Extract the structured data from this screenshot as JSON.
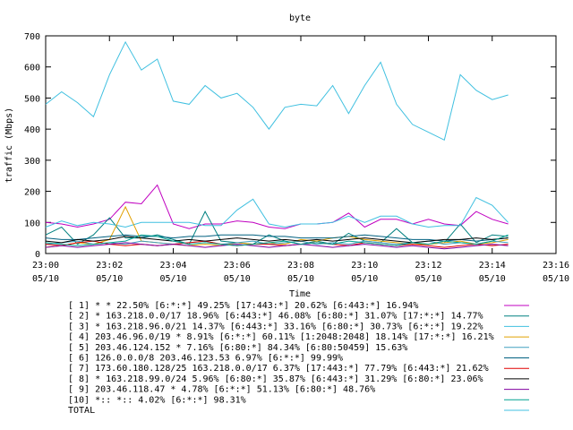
{
  "chart_data": {
    "type": "line",
    "title": "byte",
    "xlabel": "Time",
    "ylabel": "traffic (Mbps)",
    "xlim": [
      "23:00",
      "23:16"
    ],
    "ylim": [
      0,
      700
    ],
    "yticks": [
      0,
      100,
      200,
      300,
      400,
      500,
      600,
      700
    ],
    "xticks": [
      {
        "time": "23:00",
        "date": "05/10"
      },
      {
        "time": "23:02",
        "date": "05/10"
      },
      {
        "time": "23:04",
        "date": "05/10"
      },
      {
        "time": "23:06",
        "date": "05/10"
      },
      {
        "time": "23:08",
        "date": "05/10"
      },
      {
        "time": "23:10",
        "date": "05/10"
      },
      {
        "time": "23:12",
        "date": "05/10"
      },
      {
        "time": "23:14",
        "date": "05/10"
      },
      {
        "time": "23:16",
        "date": "05/10"
      }
    ],
    "grid": false,
    "legend_position": "bottom",
    "x": [
      "23:00:00",
      "23:00:30",
      "23:01:00",
      "23:01:30",
      "23:02:00",
      "23:02:30",
      "23:03:00",
      "23:03:30",
      "23:04:00",
      "23:04:30",
      "23:05:00",
      "23:05:30",
      "23:06:00",
      "23:06:30",
      "23:07:00",
      "23:07:30",
      "23:08:00",
      "23:08:30",
      "23:09:00",
      "23:09:30",
      "23:10:00",
      "23:10:30",
      "23:11:00",
      "23:11:30",
      "23:12:00",
      "23:12:30",
      "23:13:00",
      "23:13:30",
      "23:14:00",
      "23:14:30"
    ],
    "series": [
      {
        "name": "[ 1] * * 22.50%  [6:*:*] 49.25% [17:443:*] 20.62% [6:443:*] 16.94%",
        "color": "#c000c0",
        "values": [
          100,
          95,
          85,
          95,
          110,
          165,
          160,
          220,
          95,
          80,
          95,
          95,
          105,
          100,
          85,
          80,
          95,
          95,
          100,
          130,
          85,
          110,
          110,
          95,
          110,
          95,
          90,
          135,
          110,
          95
        ]
      },
      {
        "name": "[ 2] * 163.218.0.0/17 18.96%  [6:443:*] 46.08% [6:80:*] 31.07% [17:*:*] 14.77%",
        "color": "#008080",
        "values": [
          60,
          85,
          30,
          60,
          115,
          50,
          50,
          60,
          45,
          30,
          135,
          40,
          35,
          30,
          60,
          40,
          30,
          40,
          30,
          65,
          40,
          35,
          80,
          35,
          30,
          35,
          95,
          35,
          60,
          55
        ]
      },
      {
        "name": "[ 3] * 163.218.96.0/21 14.37%  [6:443:*] 33.16% [6:80:*] 30.73% [6:*:*] 19.22%",
        "color": "#40c0e0",
        "values": [
          85,
          105,
          90,
          100,
          95,
          85,
          100,
          100,
          100,
          100,
          90,
          90,
          140,
          175,
          95,
          85,
          95,
          95,
          100,
          120,
          100,
          120,
          120,
          95,
          85,
          90,
          90,
          180,
          155,
          100
        ]
      },
      {
        "name": "[ 4] 203.46.96.0/19 * 8.91%  [6:*:*] 60.11% [1:2048:2048] 18.14% [17:*:*] 16.21%",
        "color": "#e0a000",
        "values": [
          20,
          25,
          35,
          30,
          45,
          150,
          40,
          35,
          30,
          25,
          30,
          25,
          35,
          30,
          35,
          30,
          45,
          40,
          50,
          55,
          45,
          40,
          35,
          30,
          30,
          35,
          40,
          30,
          35,
          45
        ]
      },
      {
        "name": "[ 5] 203.46.124.152 * 7.16%  [6:80:*] 84.34% [6:80:50459] 15.63%",
        "color": "#40a0c0",
        "values": [
          30,
          35,
          40,
          30,
          35,
          30,
          40,
          35,
          30,
          35,
          40,
          30,
          35,
          40,
          30,
          35,
          40,
          30,
          35,
          30,
          40,
          35,
          30,
          35,
          40,
          30,
          35,
          30,
          40,
          35
        ]
      },
      {
        "name": "[ 6] 126.0.0.0/8 203.46.123.53 6.97%  [6:*:*] 99.99%",
        "color": "#006080",
        "values": [
          50,
          45,
          45,
          50,
          55,
          60,
          55,
          55,
          50,
          55,
          55,
          60,
          60,
          60,
          55,
          55,
          50,
          50,
          50,
          55,
          60,
          55,
          50,
          45,
          45,
          40,
          45,
          40,
          45,
          50
        ]
      },
      {
        "name": "[ 7] 173.60.180.128/25 163.218.0.0/17 6.37%  [17:443:*] 77.79% [6:443:*] 21.62%",
        "color": "#e00000",
        "values": [
          30,
          25,
          35,
          40,
          30,
          25,
          30,
          25,
          30,
          35,
          40,
          30,
          25,
          30,
          30,
          25,
          30,
          35,
          30,
          25,
          35,
          30,
          25,
          30,
          25,
          20,
          25,
          30,
          25,
          30
        ]
      },
      {
        "name": "[ 8] * 163.218.99.0/24 5.96%  [6:80:*] 35.87% [6:443:*] 31.29% [6:80:*] 23.06%",
        "color": "#000000",
        "values": [
          40,
          35,
          45,
          40,
          45,
          55,
          50,
          45,
          40,
          45,
          40,
          45,
          50,
          45,
          40,
          45,
          40,
          45,
          40,
          45,
          50,
          45,
          40,
          35,
          40,
          45,
          45,
          50,
          45,
          50
        ]
      },
      {
        "name": "[ 9] 203.46.118.47 * 4.78%  [6:*:*] 51.13% [6:80:*] 48.76%",
        "color": "#8000a0",
        "values": [
          20,
          25,
          20,
          25,
          30,
          35,
          30,
          25,
          30,
          25,
          20,
          25,
          30,
          25,
          20,
          25,
          30,
          25,
          20,
          25,
          30,
          25,
          20,
          25,
          20,
          15,
          20,
          25,
          30,
          25
        ]
      },
      {
        "name": "[10] *:: *:: 4.02%  [6:*:*] 98.31%",
        "color": "#00a090",
        "values": [
          35,
          30,
          25,
          30,
          35,
          40,
          60,
          55,
          40,
          30,
          35,
          30,
          25,
          30,
          35,
          40,
          30,
          35,
          30,
          40,
          35,
          30,
          25,
          35,
          30,
          40,
          35,
          30,
          40,
          60
        ]
      },
      {
        "name": "TOTAL",
        "color": "#40c0e0",
        "values": [
          480,
          520,
          485,
          440,
          575,
          680,
          590,
          625,
          490,
          480,
          540,
          500,
          515,
          470,
          400,
          470,
          480,
          475,
          540,
          450,
          540,
          615,
          480,
          415,
          390,
          365,
          575,
          525,
          495,
          510
        ]
      }
    ]
  }
}
